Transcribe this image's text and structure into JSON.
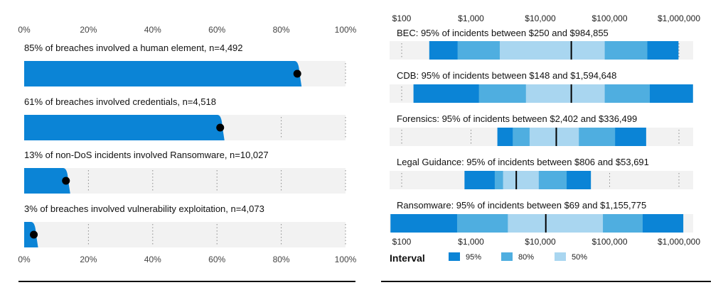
{
  "chart_data": [
    {
      "type": "bar",
      "orientation": "horizontal",
      "xlim": [
        0,
        100
      ],
      "ticks": [
        "0%",
        "20%",
        "40%",
        "60%",
        "80%",
        "100%"
      ],
      "tick_values": [
        0,
        20,
        40,
        60,
        80,
        100
      ],
      "grid": true,
      "colors": {
        "bar": "#0b84d6",
        "track": "#f2f2f2",
        "dot": "#000000"
      },
      "rows": [
        {
          "label": "85% of breaches involved a human element, n=4,492",
          "value": 85
        },
        {
          "label": "61% of breaches involved credentials, n=4,518",
          "value": 61
        },
        {
          "label": "13% of non-DoS incidents involved Ransomware, n=10,027",
          "value": 13
        },
        {
          "label": "3% of breaches involved vulnerability exploitation, n=4,073",
          "value": 3
        }
      ]
    },
    {
      "type": "interval",
      "orientation": "horizontal",
      "scale": "log",
      "xlim": [
        100,
        1000000
      ],
      "ticks": [
        "$100",
        "$1,000",
        "$10,000",
        "$100,000",
        "$1,000,000"
      ],
      "tick_values": [
        100,
        1000,
        10000,
        100000,
        1000000
      ],
      "grid": true,
      "colors": {
        "i95": "#0b84d6",
        "i80": "#4faee0",
        "i50": "#a9d6f0",
        "track": "#f2f2f2",
        "median": "#000000"
      },
      "legend": {
        "title": "Interval",
        "items": [
          {
            "label": "95%",
            "color": "#0b84d6"
          },
          {
            "label": "80%",
            "color": "#4faee0"
          },
          {
            "label": "50%",
            "color": "#a9d6f0"
          }
        ]
      },
      "rows": [
        {
          "label": "BEC: 95% of incidents between $250 and $984,855",
          "p95": [
            250,
            984855
          ],
          "p80": [
            640,
            350000
          ],
          "p50": [
            2600,
            85000
          ],
          "median": 28000
        },
        {
          "label": "CDB: 95% of incidents between $148 and $1,594,648",
          "p95": [
            148,
            1594648
          ],
          "p80": [
            1300,
            380000
          ],
          "p50": [
            6200,
            85000
          ],
          "median": 28000
        },
        {
          "label": "Forensics: 95% of incidents between $2,402 and $336,499",
          "p95": [
            2402,
            336499
          ],
          "p80": [
            4000,
            120000
          ],
          "p50": [
            7000,
            36000
          ],
          "median": 17000
        },
        {
          "label": "Legal Guidance: 95% of incidents between $806 and $53,691",
          "p95": [
            806,
            53691
          ],
          "p80": [
            2200,
            24000
          ],
          "p50": [
            2900,
            9500
          ],
          "median": 4500
        },
        {
          "label": "Ransomware: 95% of incidents between $69 and $1,155,775",
          "p95": [
            69,
            1155775
          ],
          "p80": [
            630,
            300000
          ],
          "p50": [
            3400,
            80000
          ],
          "median": 12000
        }
      ]
    }
  ]
}
